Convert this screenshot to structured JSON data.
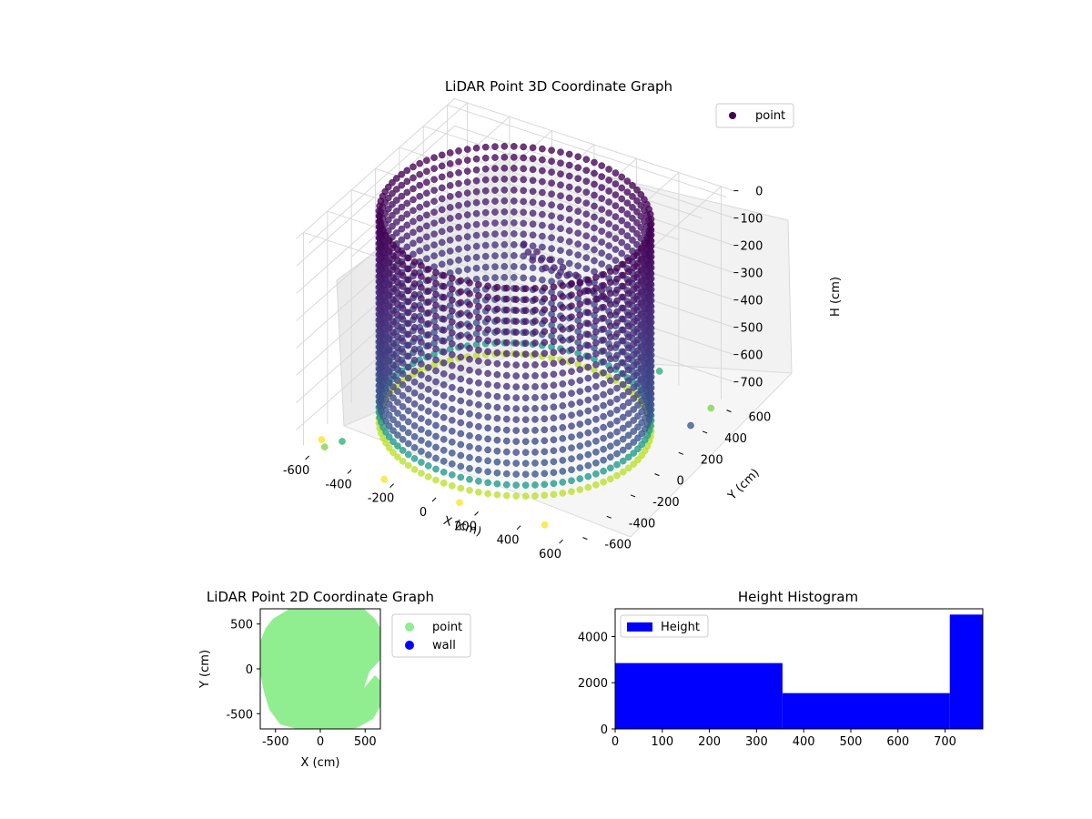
{
  "chart_data": [
    {
      "type": "scatter",
      "projection": "3d",
      "title": "LiDAR Point 3D Coordinate Graph",
      "xlabel": "X (cm)",
      "ylabel": "Y (cm)",
      "zlabel": "H (cm)",
      "xticks": [
        -600,
        -400,
        -200,
        0,
        200,
        400,
        600
      ],
      "yticks": [
        -600,
        -400,
        -200,
        0,
        200,
        400,
        600
      ],
      "zticks": [
        0,
        100,
        200,
        300,
        400,
        500,
        600,
        700
      ],
      "z_axis_inverted": true,
      "colormap": "viridis",
      "legend": [
        "point"
      ],
      "legend_position": "top-right",
      "grid": true,
      "shape": "cylindrical wall of points, radius about 600, height 0 to about 780"
    },
    {
      "type": "scatter",
      "title": "LiDAR Point 2D Coordinate Graph",
      "xlabel": "X (cm)",
      "ylabel": "Y (cm)",
      "xticks": [
        -500,
        0,
        500
      ],
      "yticks": [
        -500,
        0,
        500
      ],
      "xlim": [
        -670,
        670
      ],
      "ylim": [
        -670,
        670
      ],
      "series": [
        {
          "name": "point",
          "color": "#90ee90"
        },
        {
          "name": "wall",
          "color": "#0000ff"
        }
      ],
      "legend_position": "outside-right"
    },
    {
      "type": "bar",
      "title": "Height Histogram",
      "xlabel": "",
      "ylabel": "",
      "bins": [
        [
          0,
          355
        ],
        [
          355,
          710
        ],
        [
          710,
          780
        ]
      ],
      "values": [
        2850,
        1550,
        4950
      ],
      "color": "#0000ff",
      "legend": [
        "Height"
      ],
      "legend_position": "top-left",
      "xlim": [
        0,
        780
      ],
      "ylim": [
        0,
        5200
      ],
      "xticks": [
        0,
        100,
        200,
        300,
        400,
        500,
        600,
        700
      ],
      "yticks": [
        0,
        2000,
        4000
      ]
    }
  ]
}
